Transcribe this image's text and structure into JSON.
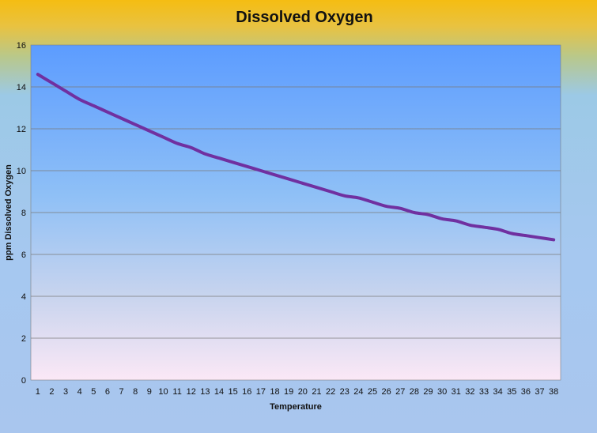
{
  "chart_data": {
    "type": "line",
    "title": "Dissolved Oxygen",
    "xlabel": "Temperature",
    "ylabel": "ppm Dissolved Oxygen",
    "ylim": [
      0,
      16
    ],
    "yticks": [
      0,
      2,
      4,
      6,
      8,
      10,
      12,
      14,
      16
    ],
    "categories": [
      "1",
      "2",
      "3",
      "4",
      "5",
      "6",
      "7",
      "8",
      "9",
      "10",
      "11",
      "12",
      "13",
      "14",
      "15",
      "16",
      "17",
      "18",
      "19",
      "20",
      "21",
      "22",
      "23",
      "24",
      "25",
      "26",
      "27",
      "28",
      "29",
      "30",
      "31",
      "32",
      "33",
      "34",
      "35",
      "36",
      "37",
      "38"
    ],
    "series": [
      {
        "color": "#7030a0",
        "values": [
          14.6,
          14.2,
          13.8,
          13.4,
          13.1,
          12.8,
          12.5,
          12.2,
          11.9,
          11.6,
          11.3,
          11.1,
          10.8,
          10.6,
          10.4,
          10.2,
          10.0,
          9.8,
          9.6,
          9.4,
          9.2,
          9.0,
          8.8,
          8.7,
          8.5,
          8.3,
          8.2,
          8.0,
          7.9,
          7.7,
          7.6,
          7.4,
          7.3,
          7.2,
          7.0,
          6.9,
          6.8,
          6.7
        ]
      }
    ],
    "grid": true,
    "legend": "none"
  }
}
